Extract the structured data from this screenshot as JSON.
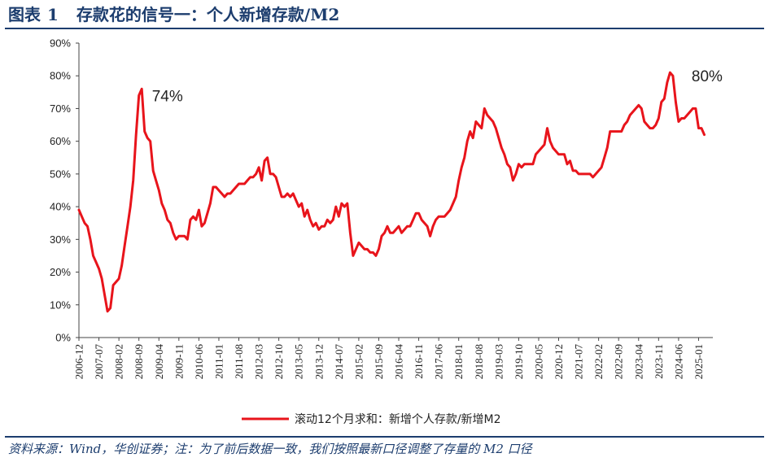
{
  "header": {
    "prefix": "图表",
    "number": "1",
    "title": "存款花的信号一：个人新增存款/M2"
  },
  "source": "资料来源：Wind，华创证券；注：为了前后数据一致，我们按照最新口径调整了存量的 M2 口径",
  "chart_data": {
    "type": "line",
    "title": "图表 1 存款花的信号一：个人新增存款/M2",
    "y_ticks": [
      "0%",
      "10%",
      "20%",
      "30%",
      "40%",
      "50%",
      "60%",
      "70%",
      "80%",
      "90%"
    ],
    "ylim": [
      0,
      90
    ],
    "x_ticks": [
      "2006-12",
      "2007-07",
      "2008-02",
      "2008-09",
      "2009-04",
      "2009-11",
      "2010-06",
      "2011-01",
      "2011-08",
      "2012-03",
      "2012-10",
      "2013-05",
      "2013-12",
      "2014-07",
      "2015-02",
      "2015-09",
      "2016-04",
      "2016-11",
      "2017-06",
      "2018-01",
      "2018-08",
      "2019-03",
      "2019-10",
      "2020-05",
      "2020-12",
      "2021-07",
      "2022-02",
      "2022-09",
      "2023-04",
      "2023-11",
      "2024-06",
      "2025-01"
    ],
    "x_start": "2006-12",
    "x_end": "2025-06",
    "grid": false,
    "legend": "bottom",
    "line_color": "#e8141b",
    "annotations": [
      {
        "text": "74%",
        "x": "2009-01",
        "y": 74
      },
      {
        "text": "80%",
        "x": "2024-10",
        "y": 80
      }
    ],
    "series": [
      {
        "name": "滚动12个月求和：新增个人存款/新增M2",
        "points": [
          [
            "2006-12",
            39
          ],
          [
            "2007-01",
            37
          ],
          [
            "2007-02",
            35
          ],
          [
            "2007-03",
            34
          ],
          [
            "2007-04",
            30
          ],
          [
            "2007-05",
            25
          ],
          [
            "2007-06",
            23
          ],
          [
            "2007-07",
            21
          ],
          [
            "2007-08",
            18
          ],
          [
            "2007-09",
            13
          ],
          [
            "2007-10",
            8
          ],
          [
            "2007-11",
            9
          ],
          [
            "2007-12",
            16
          ],
          [
            "2008-01",
            17
          ],
          [
            "2008-02",
            18
          ],
          [
            "2008-03",
            22
          ],
          [
            "2008-04",
            28
          ],
          [
            "2008-05",
            34
          ],
          [
            "2008-06",
            40
          ],
          [
            "2008-07",
            48
          ],
          [
            "2008-08",
            62
          ],
          [
            "2008-09",
            74
          ],
          [
            "2008-10",
            76
          ],
          [
            "2008-11",
            63
          ],
          [
            "2008-12",
            61
          ],
          [
            "2009-01",
            60
          ],
          [
            "2009-02",
            51
          ],
          [
            "2009-03",
            48
          ],
          [
            "2009-04",
            45
          ],
          [
            "2009-05",
            41
          ],
          [
            "2009-06",
            39
          ],
          [
            "2009-07",
            36
          ],
          [
            "2009-08",
            35
          ],
          [
            "2009-09",
            32
          ],
          [
            "2009-10",
            30
          ],
          [
            "2009-11",
            31
          ],
          [
            "2009-12",
            31
          ],
          [
            "2010-01",
            31
          ],
          [
            "2010-02",
            30
          ],
          [
            "2010-03",
            36
          ],
          [
            "2010-04",
            37
          ],
          [
            "2010-05",
            36
          ],
          [
            "2010-06",
            39
          ],
          [
            "2010-07",
            34
          ],
          [
            "2010-08",
            35
          ],
          [
            "2010-09",
            38
          ],
          [
            "2010-10",
            41
          ],
          [
            "2010-11",
            46
          ],
          [
            "2010-12",
            46
          ],
          [
            "2011-01",
            45
          ],
          [
            "2011-02",
            44
          ],
          [
            "2011-03",
            43
          ],
          [
            "2011-04",
            44
          ],
          [
            "2011-05",
            44
          ],
          [
            "2011-06",
            45
          ],
          [
            "2011-07",
            46
          ],
          [
            "2011-08",
            47
          ],
          [
            "2011-09",
            47
          ],
          [
            "2011-10",
            47
          ],
          [
            "2011-11",
            48
          ],
          [
            "2011-12",
            49
          ],
          [
            "2012-01",
            49
          ],
          [
            "2012-02",
            50
          ],
          [
            "2012-03",
            52
          ],
          [
            "2012-04",
            48
          ],
          [
            "2012-05",
            54
          ],
          [
            "2012-06",
            55
          ],
          [
            "2012-07",
            50
          ],
          [
            "2012-08",
            50
          ],
          [
            "2012-09",
            49
          ],
          [
            "2012-10",
            46
          ],
          [
            "2012-11",
            43
          ],
          [
            "2012-12",
            43
          ],
          [
            "2013-01",
            44
          ],
          [
            "2013-02",
            43
          ],
          [
            "2013-03",
            44
          ],
          [
            "2013-04",
            42
          ],
          [
            "2013-05",
            40
          ],
          [
            "2013-06",
            41
          ],
          [
            "2013-07",
            37
          ],
          [
            "2013-08",
            39
          ],
          [
            "2013-09",
            36
          ],
          [
            "2013-10",
            34
          ],
          [
            "2013-11",
            35
          ],
          [
            "2013-12",
            33
          ],
          [
            "2014-01",
            34
          ],
          [
            "2014-02",
            34
          ],
          [
            "2014-03",
            36
          ],
          [
            "2014-04",
            35
          ],
          [
            "2014-05",
            36
          ],
          [
            "2014-06",
            40
          ],
          [
            "2014-07",
            37
          ],
          [
            "2014-08",
            41
          ],
          [
            "2014-09",
            40
          ],
          [
            "2014-10",
            41
          ],
          [
            "2014-11",
            32
          ],
          [
            "2014-12",
            25
          ],
          [
            "2015-01",
            27
          ],
          [
            "2015-02",
            29
          ],
          [
            "2015-03",
            28
          ],
          [
            "2015-04",
            27
          ],
          [
            "2015-05",
            27
          ],
          [
            "2015-06",
            26
          ],
          [
            "2015-07",
            26
          ],
          [
            "2015-08",
            25
          ],
          [
            "2015-09",
            27
          ],
          [
            "2015-10",
            31
          ],
          [
            "2015-11",
            32
          ],
          [
            "2015-12",
            34
          ],
          [
            "2016-01",
            32
          ],
          [
            "2016-02",
            32
          ],
          [
            "2016-03",
            33
          ],
          [
            "2016-04",
            34
          ],
          [
            "2016-05",
            32
          ],
          [
            "2016-06",
            33
          ],
          [
            "2016-07",
            34
          ],
          [
            "2016-08",
            34
          ],
          [
            "2016-09",
            36
          ],
          [
            "2016-10",
            38
          ],
          [
            "2016-11",
            38
          ],
          [
            "2016-12",
            36
          ],
          [
            "2017-01",
            35
          ],
          [
            "2017-02",
            34
          ],
          [
            "2017-03",
            31
          ],
          [
            "2017-04",
            34
          ],
          [
            "2017-05",
            36
          ],
          [
            "2017-06",
            37
          ],
          [
            "2017-07",
            37
          ],
          [
            "2017-08",
            37
          ],
          [
            "2017-09",
            38
          ],
          [
            "2017-10",
            39
          ],
          [
            "2017-11",
            41
          ],
          [
            "2017-12",
            43
          ],
          [
            "2018-01",
            48
          ],
          [
            "2018-02",
            52
          ],
          [
            "2018-03",
            55
          ],
          [
            "2018-04",
            60
          ],
          [
            "2018-05",
            63
          ],
          [
            "2018-06",
            61
          ],
          [
            "2018-07",
            66
          ],
          [
            "2018-08",
            65
          ],
          [
            "2018-09",
            64
          ],
          [
            "2018-10",
            70
          ],
          [
            "2018-11",
            68
          ],
          [
            "2018-12",
            67
          ],
          [
            "2019-01",
            66
          ],
          [
            "2019-02",
            64
          ],
          [
            "2019-03",
            61
          ],
          [
            "2019-04",
            58
          ],
          [
            "2019-05",
            56
          ],
          [
            "2019-06",
            53
          ],
          [
            "2019-07",
            52
          ],
          [
            "2019-08",
            48
          ],
          [
            "2019-09",
            50
          ],
          [
            "2019-10",
            53
          ],
          [
            "2019-11",
            52
          ],
          [
            "2019-12",
            53
          ],
          [
            "2020-01",
            53
          ],
          [
            "2020-02",
            53
          ],
          [
            "2020-03",
            53
          ],
          [
            "2020-04",
            56
          ],
          [
            "2020-05",
            57
          ],
          [
            "2020-06",
            58
          ],
          [
            "2020-07",
            59
          ],
          [
            "2020-08",
            64
          ],
          [
            "2020-09",
            60
          ],
          [
            "2020-10",
            58
          ],
          [
            "2020-11",
            57
          ],
          [
            "2020-12",
            56
          ],
          [
            "2021-01",
            56
          ],
          [
            "2021-02",
            56
          ],
          [
            "2021-03",
            53
          ],
          [
            "2021-04",
            54
          ],
          [
            "2021-05",
            51
          ],
          [
            "2021-06",
            51
          ],
          [
            "2021-07",
            50
          ],
          [
            "2021-08",
            50
          ],
          [
            "2021-09",
            50
          ],
          [
            "2021-10",
            50
          ],
          [
            "2021-11",
            50
          ],
          [
            "2021-12",
            49
          ],
          [
            "2022-01",
            50
          ],
          [
            "2022-02",
            51
          ],
          [
            "2022-03",
            52
          ],
          [
            "2022-04",
            55
          ],
          [
            "2022-05",
            58
          ],
          [
            "2022-06",
            63
          ],
          [
            "2022-07",
            63
          ],
          [
            "2022-08",
            63
          ],
          [
            "2022-09",
            63
          ],
          [
            "2022-10",
            63
          ],
          [
            "2022-11",
            65
          ],
          [
            "2022-12",
            66
          ],
          [
            "2023-01",
            68
          ],
          [
            "2023-02",
            69
          ],
          [
            "2023-03",
            70
          ],
          [
            "2023-04",
            71
          ],
          [
            "2023-05",
            70
          ],
          [
            "2023-06",
            66
          ],
          [
            "2023-07",
            65
          ],
          [
            "2023-08",
            64
          ],
          [
            "2023-09",
            64
          ],
          [
            "2023-10",
            65
          ],
          [
            "2023-11",
            67
          ],
          [
            "2023-12",
            72
          ],
          [
            "2024-01",
            73
          ],
          [
            "2024-02",
            78
          ],
          [
            "2024-03",
            81
          ],
          [
            "2024-04",
            80
          ],
          [
            "2024-05",
            72
          ],
          [
            "2024-06",
            66
          ],
          [
            "2024-07",
            67
          ],
          [
            "2024-08",
            67
          ],
          [
            "2024-09",
            68
          ],
          [
            "2024-10",
            69
          ],
          [
            "2024-11",
            70
          ],
          [
            "2024-12",
            70
          ],
          [
            "2025-01",
            64
          ],
          [
            "2025-02",
            64
          ],
          [
            "2025-03",
            62
          ]
        ]
      }
    ]
  }
}
